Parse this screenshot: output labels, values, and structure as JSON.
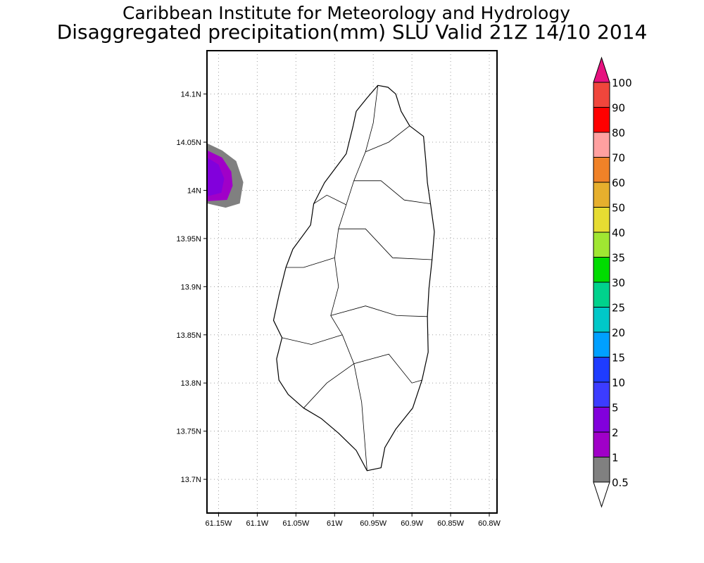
{
  "header": {
    "title_line1": "Caribbean Institute for Meteorology and Hydrology",
    "title_line2": "Disaggregated precipitation(mm) SLU Valid 21Z 14/10 2014"
  },
  "chart_data": {
    "type": "map",
    "variable": "precipitation (mm)",
    "xlim": [
      -61.165,
      -60.79
    ],
    "ylim": [
      13.665,
      14.145
    ],
    "grid": true,
    "x_ticks": [
      {
        "value": -61.15,
        "label": "61.15W"
      },
      {
        "value": -61.1,
        "label": "61.1W"
      },
      {
        "value": -61.05,
        "label": "61.05W"
      },
      {
        "value": -61.0,
        "label": "61W"
      },
      {
        "value": -60.95,
        "label": "60.95W"
      },
      {
        "value": -60.9,
        "label": "60.9W"
      },
      {
        "value": -60.85,
        "label": "60.85W"
      },
      {
        "value": -60.8,
        "label": "60.8W"
      }
    ],
    "y_ticks": [
      {
        "value": 14.1,
        "label": "14.1N"
      },
      {
        "value": 14.05,
        "label": "14.05N"
      },
      {
        "value": 14.0,
        "label": "14N"
      },
      {
        "value": 13.95,
        "label": "13.95N"
      },
      {
        "value": 13.9,
        "label": "13.9N"
      },
      {
        "value": 13.85,
        "label": "13.85N"
      },
      {
        "value": 13.8,
        "label": "13.8N"
      },
      {
        "value": 13.75,
        "label": "13.75N"
      },
      {
        "value": 13.7,
        "label": "13.7N"
      }
    ],
    "island_outline": [
      [
        -60.944,
        14.109
      ],
      [
        -60.931,
        14.107
      ],
      [
        -60.921,
        14.1
      ],
      [
        -60.914,
        14.082
      ],
      [
        -60.903,
        14.067
      ],
      [
        -60.885,
        14.056
      ],
      [
        -60.882,
        14.03
      ],
      [
        -60.88,
        14.008
      ],
      [
        -60.876,
        13.986
      ],
      [
        -60.871,
        13.957
      ],
      [
        -60.874,
        13.928
      ],
      [
        -60.878,
        13.898
      ],
      [
        -60.88,
        13.869
      ],
      [
        -60.879,
        13.832
      ],
      [
        -60.887,
        13.803
      ],
      [
        -60.899,
        13.774
      ],
      [
        -60.921,
        13.752
      ],
      [
        -60.935,
        13.733
      ],
      [
        -60.94,
        13.712
      ],
      [
        -60.958,
        13.709
      ],
      [
        -60.972,
        13.73
      ],
      [
        -60.995,
        13.748
      ],
      [
        -61.017,
        13.763
      ],
      [
        -61.04,
        13.774
      ],
      [
        -61.06,
        13.788
      ],
      [
        -61.072,
        13.803
      ],
      [
        -61.075,
        13.825
      ],
      [
        -61.068,
        13.847
      ],
      [
        -61.079,
        13.865
      ],
      [
        -61.072,
        13.891
      ],
      [
        -61.063,
        13.92
      ],
      [
        -61.054,
        13.939
      ],
      [
        -61.031,
        13.964
      ],
      [
        -61.027,
        13.986
      ],
      [
        -61.013,
        14.008
      ],
      [
        -60.999,
        14.023
      ],
      [
        -60.985,
        14.038
      ],
      [
        -60.976,
        14.067
      ],
      [
        -60.972,
        14.082
      ],
      [
        -60.958,
        14.096
      ]
    ],
    "basin_boundaries": [
      [
        [
          -60.944,
          14.109
        ],
        [
          -60.95,
          14.07
        ],
        [
          -60.96,
          14.04
        ],
        [
          -60.975,
          14.01
        ],
        [
          -60.985,
          13.985
        ],
        [
          -60.995,
          13.96
        ],
        [
          -61.0,
          13.93
        ],
        [
          -60.995,
          13.9
        ],
        [
          -61.005,
          13.87
        ],
        [
          -60.99,
          13.85
        ],
        [
          -60.975,
          13.82
        ],
        [
          -60.965,
          13.78
        ],
        [
          -60.958,
          13.709
        ]
      ],
      [
        [
          -60.975,
          14.01
        ],
        [
          -60.94,
          14.01
        ],
        [
          -60.91,
          13.99
        ],
        [
          -60.876,
          13.986
        ]
      ],
      [
        [
          -60.995,
          13.96
        ],
        [
          -60.96,
          13.96
        ],
        [
          -60.925,
          13.93
        ],
        [
          -60.874,
          13.928
        ]
      ],
      [
        [
          -61.005,
          13.87
        ],
        [
          -60.96,
          13.88
        ],
        [
          -60.92,
          13.87
        ],
        [
          -60.88,
          13.869
        ]
      ],
      [
        [
          -60.99,
          13.85
        ],
        [
          -61.03,
          13.84
        ],
        [
          -61.068,
          13.847
        ]
      ],
      [
        [
          -61.0,
          13.93
        ],
        [
          -61.04,
          13.92
        ],
        [
          -61.063,
          13.92
        ]
      ],
      [
        [
          -60.975,
          13.82
        ],
        [
          -60.93,
          13.83
        ],
        [
          -60.9,
          13.8
        ],
        [
          -60.887,
          13.803
        ]
      ],
      [
        [
          -60.975,
          13.82
        ],
        [
          -61.01,
          13.8
        ],
        [
          -61.04,
          13.774
        ]
      ],
      [
        [
          -60.96,
          14.04
        ],
        [
          -60.93,
          14.05
        ],
        [
          -60.903,
          14.067
        ]
      ],
      [
        [
          -60.985,
          13.985
        ],
        [
          -61.01,
          13.995
        ],
        [
          -61.027,
          13.986
        ]
      ]
    ],
    "precip_contours": [
      {
        "level": "0.5-1",
        "color": "#808080",
        "polygon": [
          [
            -61.1646,
            14.0487
          ],
          [
            -61.1454,
            14.0414
          ],
          [
            -61.1272,
            14.0304
          ],
          [
            -61.118,
            14.0084
          ],
          [
            -61.1226,
            13.9864
          ],
          [
            -61.1409,
            13.982
          ],
          [
            -61.1646,
            13.9864
          ]
        ]
      },
      {
        "level": "1-2",
        "color": "#a000c8",
        "polygon": [
          [
            -61.1646,
            14.0414
          ],
          [
            -61.1454,
            14.034
          ],
          [
            -61.1336,
            14.0194
          ],
          [
            -61.1318,
            14.0048
          ],
          [
            -61.1391,
            13.9901
          ],
          [
            -61.1646,
            13.9887
          ]
        ]
      },
      {
        "level": "2-5",
        "color": "#8200dc",
        "polygon": [
          [
            -61.1646,
            14.034
          ],
          [
            -61.15,
            14.0267
          ],
          [
            -61.1427,
            14.0121
          ],
          [
            -61.1464,
            13.9975
          ],
          [
            -61.1646,
            13.9938
          ]
        ]
      }
    ],
    "colorbar": {
      "labels": [
        "0.5",
        "1",
        "2",
        "5",
        "10",
        "15",
        "20",
        "25",
        "30",
        "35",
        "40",
        "50",
        "60",
        "70",
        "80",
        "90",
        "100"
      ],
      "colors": [
        "#808080",
        "#a000c8",
        "#8200dc",
        "#3c3cff",
        "#1e3cff",
        "#00a0ff",
        "#00c8c8",
        "#00d28c",
        "#00dc00",
        "#a0e632",
        "#e6dc32",
        "#e6af2d",
        "#f08228",
        "#ffa0a0",
        "#ff0000",
        "#f0463c"
      ],
      "over_color": "#e6117f",
      "under_color": "#ffffff"
    }
  }
}
